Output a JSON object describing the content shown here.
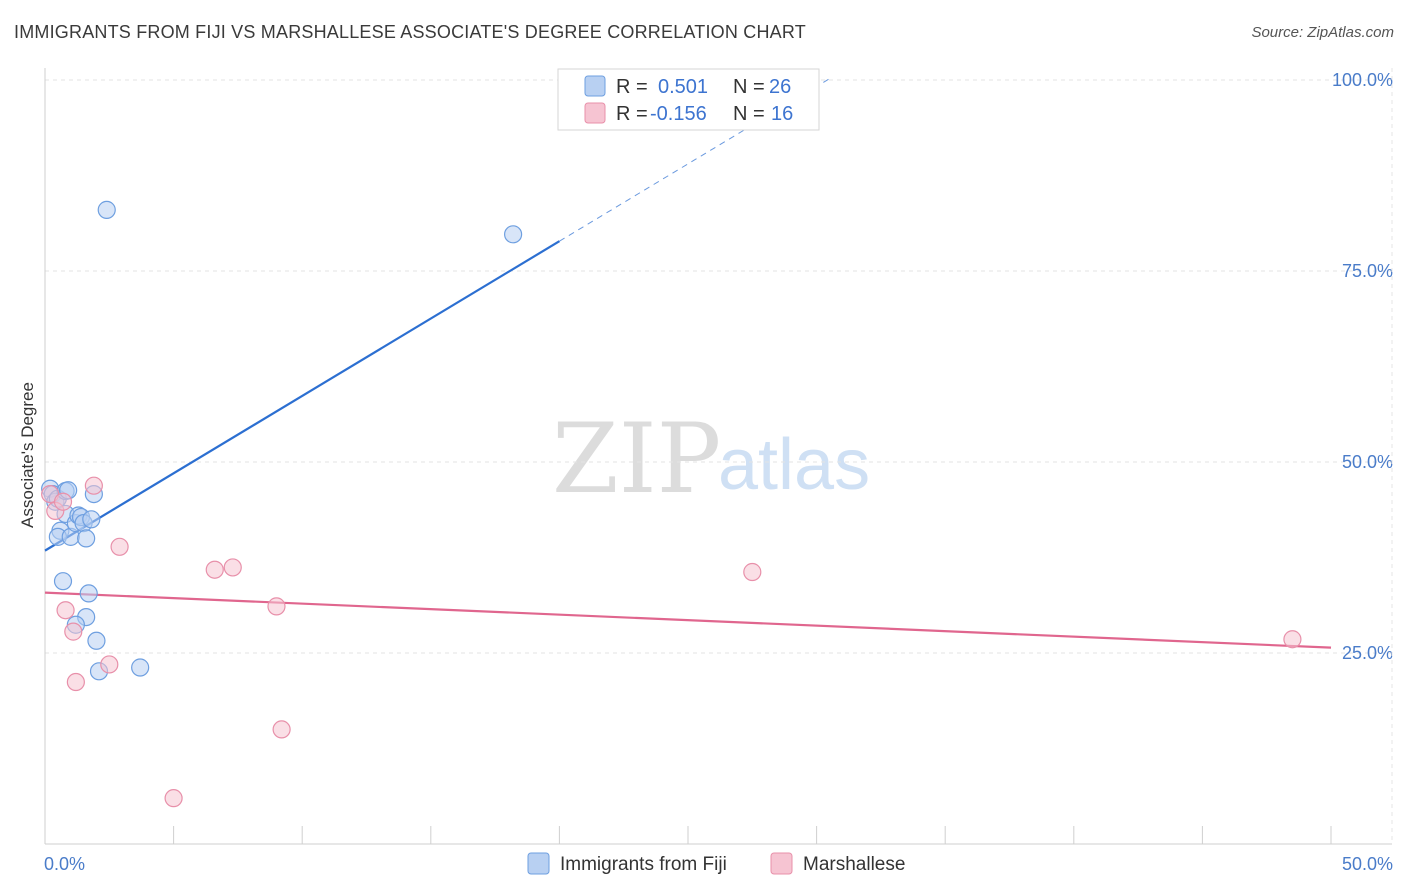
{
  "title": "IMMIGRANTS FROM FIJI VS MARSHALLESE ASSOCIATE'S DEGREE CORRELATION CHART",
  "source": "Source: ZipAtlas.com",
  "watermark": {
    "zip": "ZIP",
    "atlas": "atlas"
  },
  "chart_data": {
    "type": "scatter",
    "ylabel": "Associate's Degree",
    "xlabel": "",
    "xlim": [
      0,
      50
    ],
    "ylim": [
      0,
      100
    ],
    "x_tick_labels": [
      "0.0%",
      "50.0%"
    ],
    "y_ticks": [
      25,
      50,
      75,
      100
    ],
    "y_tick_labels": [
      "25.0%",
      "50.0%",
      "75.0%",
      "100.0%"
    ],
    "legend": [
      {
        "r_label": "R =",
        "r_value": "0.501",
        "n_label": "N =",
        "n_value": "26"
      },
      {
        "r_label": "R =",
        "r_value": "-0.156",
        "n_label": "N =",
        "n_value": "16"
      }
    ],
    "series": [
      {
        "name": "Immigrants from Fiji",
        "color": "#6e9fe0",
        "fill": "#b8d0f2",
        "line_color": "#2c6fd1",
        "trend": {
          "x0": 0,
          "y0": 38.4,
          "x1": 20,
          "y1": 78.9,
          "x_dash_end": 30.5
        },
        "points": [
          [
            0.2,
            46.5
          ],
          [
            0.3,
            45.8
          ],
          [
            0.4,
            44.8
          ],
          [
            0.5,
            45.2
          ],
          [
            0.6,
            41.0
          ],
          [
            0.5,
            40.2
          ],
          [
            0.8,
            46.2
          ],
          [
            0.9,
            46.3
          ],
          [
            0.8,
            43.2
          ],
          [
            1.0,
            40.2
          ],
          [
            1.2,
            42.0
          ],
          [
            1.3,
            43.0
          ],
          [
            1.4,
            42.8
          ],
          [
            1.5,
            42.0
          ],
          [
            1.6,
            40.0
          ],
          [
            1.8,
            42.5
          ],
          [
            1.9,
            45.8
          ],
          [
            0.7,
            34.4
          ],
          [
            1.7,
            32.8
          ],
          [
            1.6,
            29.7
          ],
          [
            1.2,
            28.7
          ],
          [
            2.0,
            26.6
          ],
          [
            2.1,
            22.6
          ],
          [
            3.7,
            23.1
          ],
          [
            2.4,
            83.0
          ],
          [
            18.2,
            79.8
          ]
        ]
      },
      {
        "name": "Marshallese",
        "color": "#e890aa",
        "fill": "#f6c4d2",
        "line_color": "#e0668e",
        "trend": {
          "x0": 0,
          "y0": 32.9,
          "x1": 50,
          "y1": 25.7
        },
        "points": [
          [
            0.2,
            45.8
          ],
          [
            0.4,
            43.6
          ],
          [
            0.7,
            44.8
          ],
          [
            1.9,
            46.9
          ],
          [
            2.9,
            38.9
          ],
          [
            0.8,
            30.6
          ],
          [
            1.1,
            27.8
          ],
          [
            1.2,
            21.2
          ],
          [
            2.5,
            23.5
          ],
          [
            6.6,
            35.9
          ],
          [
            7.3,
            36.2
          ],
          [
            9.0,
            31.1
          ],
          [
            9.2,
            15.0
          ],
          [
            5.0,
            6.0
          ],
          [
            27.5,
            35.6
          ],
          [
            48.5,
            26.8
          ]
        ]
      }
    ]
  }
}
